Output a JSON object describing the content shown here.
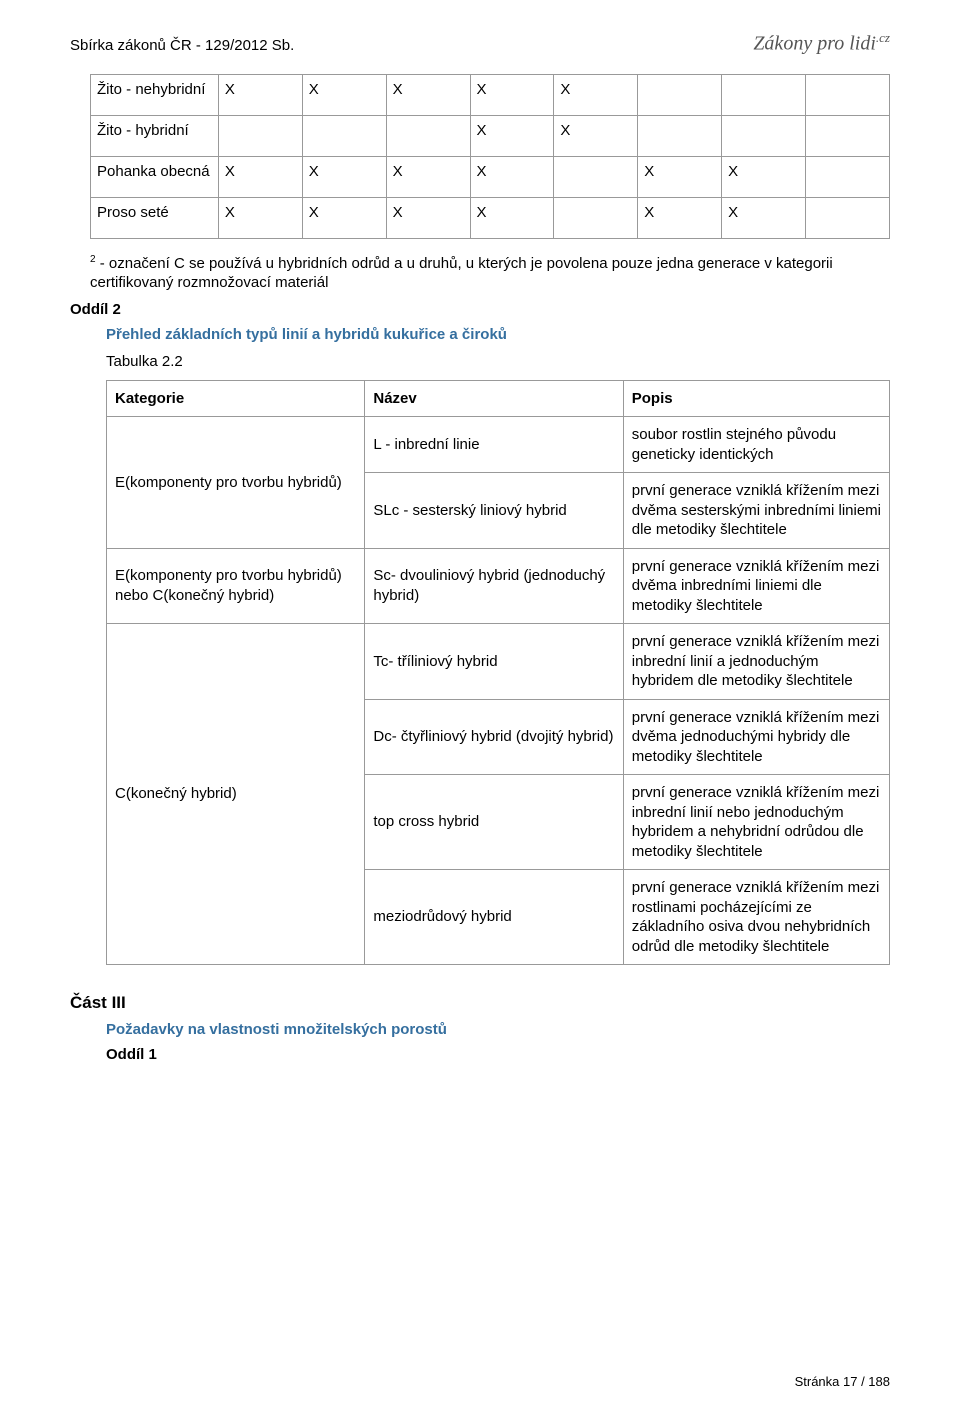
{
  "header": {
    "doc_title": "Sbírka zákonů ČR - 129/2012 Sb.",
    "brand_main": "Zákony pro lidi",
    "brand_suffix": ".cz"
  },
  "table1": {
    "col_count": 8,
    "rows": [
      {
        "label": "Žito - nehybridní",
        "cells": [
          "X",
          "X",
          "X",
          "X",
          "X",
          "",
          "",
          ""
        ]
      },
      {
        "label": "Žito - hybridní",
        "cells": [
          "",
          "",
          "",
          "X",
          "X",
          "",
          "",
          ""
        ]
      },
      {
        "label": "Pohanka obecná",
        "cells": [
          "X",
          "X",
          "X",
          "X",
          "",
          "X",
          "X",
          ""
        ]
      },
      {
        "label": "Proso seté",
        "cells": [
          "X",
          "X",
          "X",
          "X",
          "",
          "X",
          "X",
          ""
        ]
      }
    ]
  },
  "footnote": {
    "sup": "2",
    "text": " - označení C se používá u hybridních odrůd a u druhů, u kterých je povolena pouze jedna generace v kategorii certifikovaný rozmnožovací materiál"
  },
  "oddil2": "Oddíl 2",
  "blue_heading": "Přehled základních typů linií a hybridů kukuřice a čiroků",
  "tab22_label": "Tabulka 2.2",
  "table2": {
    "headers": [
      "Kategorie",
      "Název",
      "Popis"
    ],
    "col_widths": [
      "33%",
      "33%",
      "34%"
    ],
    "groups": [
      {
        "category": "E(komponenty pro tvorbu hybridů)",
        "rows": [
          {
            "name": "L - inbrední linie",
            "desc": "soubor rostlin stejného původu geneticky identických"
          },
          {
            "name": "SLc - sesterský liniový hybrid",
            "desc": "první generace vzniklá křížením mezi dvěma sesterskými inbredními liniemi dle metodiky šlechtitele"
          }
        ]
      },
      {
        "category": "E(komponenty pro tvorbu hybridů) nebo C(konečný hybrid)",
        "rows": [
          {
            "name": "Sc- dvouliniový hybrid (jednoduchý hybrid)",
            "desc": "první generace vzniklá křížením mezi dvěma inbredními liniemi dle metodiky šlechtitele"
          }
        ]
      },
      {
        "category": "C(konečný hybrid)",
        "rows": [
          {
            "name": "Tc- tříliniový hybrid",
            "desc": "první generace vzniklá křížením mezi inbrední linií a jednoduchým hybridem dle metodiky šlechtitele"
          },
          {
            "name": "Dc- čtyřliniový hybrid (dvojitý hybrid)",
            "desc": "první generace vzniklá křížením mezi dvěma jednoduchými hybridy dle metodiky šlechtitele"
          },
          {
            "name": "top cross hybrid",
            "desc": "první generace vzniklá křížením mezi inbrední linií nebo jednoduchým hybridem a nehybridní odrůdou dle metodiky šlechtitele"
          },
          {
            "name": "meziodrůdový hybrid",
            "desc": "první generace vzniklá křížením mezi rostlinami pocházejícími ze základního osiva dvou nehybridních odrůd dle metodiky šlechtitele"
          }
        ]
      }
    ]
  },
  "part3": "Část III",
  "blue_heading2": "Požadavky na vlastnosti množitelských porostů",
  "oddil1": "Oddíl 1",
  "footer": "Stránka 17 / 188",
  "colors": {
    "border": "#999999",
    "blue": "#356f9f",
    "text": "#000000",
    "brand": "#555555",
    "background": "#ffffff"
  }
}
